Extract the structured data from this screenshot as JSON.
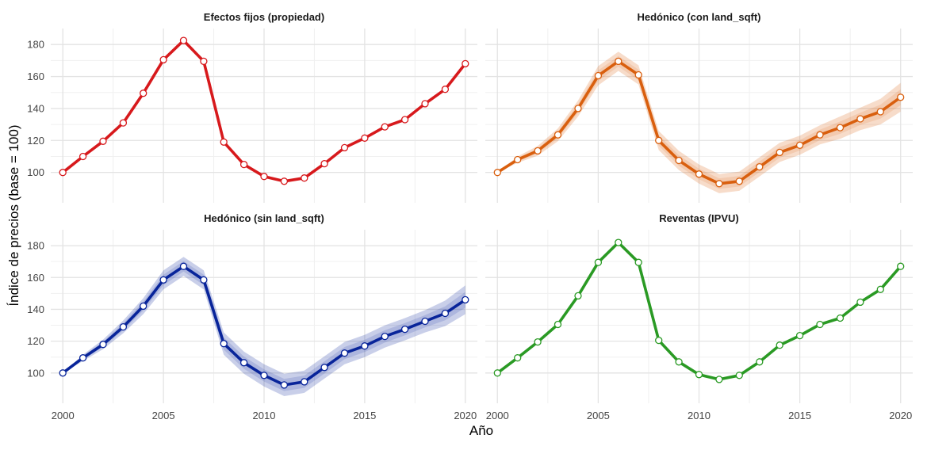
{
  "chart_data": {
    "type": "line",
    "xlabel": "Año",
    "ylabel": "Índice de precios (base = 100)",
    "x": [
      2000,
      2001,
      2002,
      2003,
      2004,
      2005,
      2006,
      2007,
      2008,
      2009,
      2010,
      2011,
      2012,
      2013,
      2014,
      2015,
      2016,
      2017,
      2018,
      2019,
      2020
    ],
    "x_ticks": [
      2000,
      2005,
      2010,
      2015,
      2020
    ],
    "y_ticks": [
      100,
      120,
      140,
      160,
      180
    ],
    "xlim": [
      1999.4,
      2020.6
    ],
    "ylim": [
      81,
      190
    ],
    "grid": true,
    "panels": [
      {
        "title": "Efectos fijos (propiedad)",
        "color": "#d7191c",
        "band": false,
        "values": [
          100,
          110,
          119.5,
          131,
          149.5,
          170.5,
          182.5,
          169.5,
          119,
          105,
          97.5,
          94.5,
          96.5,
          105.5,
          115.5,
          121.5,
          128.5,
          133,
          143,
          152,
          168
        ]
      },
      {
        "title": "Hedónico (con land_sqft)",
        "color": "#d95f0e",
        "band": true,
        "band_halfwidth": [
          0,
          2,
          3,
          4,
          5,
          6,
          6,
          6,
          6,
          6,
          6,
          6,
          6,
          6,
          6,
          6,
          6,
          7,
          7,
          8,
          9
        ],
        "values": [
          100,
          108,
          113.5,
          123.5,
          140,
          160.5,
          169.5,
          161,
          120,
          107.5,
          99,
          93,
          94.5,
          103.5,
          112.5,
          117,
          123.5,
          128,
          133.5,
          138,
          147
        ]
      },
      {
        "title": "Hedónico (sin land_sqft)",
        "color": "#08249a",
        "band": true,
        "band_halfwidth": [
          0,
          2,
          3,
          4,
          5,
          6,
          6,
          6,
          7,
          7,
          7,
          7,
          7,
          7,
          7,
          7,
          7,
          7,
          7,
          8,
          9
        ],
        "values": [
          100,
          109.5,
          118,
          129,
          142,
          158.5,
          167,
          158.5,
          118.5,
          106.5,
          98.5,
          92.5,
          94.5,
          103.5,
          112.5,
          117,
          123,
          127.5,
          132.5,
          137.5,
          146
        ]
      },
      {
        "title": "Reventas (IPVU)",
        "color": "#2a9a24",
        "band": false,
        "values": [
          100,
          109.5,
          119.5,
          130.5,
          148.5,
          169.5,
          182,
          169.5,
          120.5,
          107,
          99,
          96,
          98.5,
          107,
          117.5,
          123.5,
          130.5,
          134.5,
          144.5,
          152.5,
          167
        ]
      }
    ]
  }
}
